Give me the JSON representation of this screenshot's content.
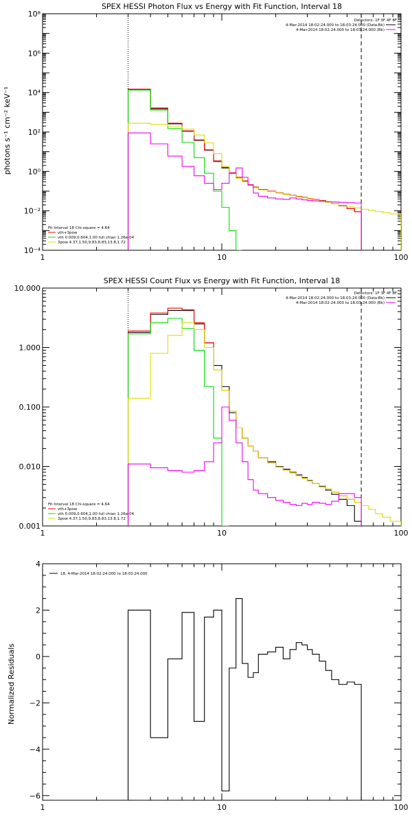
{
  "colors": {
    "data": "#000000",
    "model_total": "#ff0000",
    "vth": "#00dd00",
    "pow": "#dddd00",
    "bk": "#ee00ee",
    "background": "#ffffff"
  },
  "chart_data": [
    {
      "type": "line",
      "title": "SPEX HESSI Photon Flux vs Energy with Fit Function, Interval 18",
      "ylabel": "photons s⁻¹ cm⁻² keV⁻¹",
      "xlabel": "",
      "xscale": "log",
      "yscale": "log",
      "xlim": [
        1,
        100
      ],
      "ylim": [
        0.0001,
        100000000
      ],
      "xticks": [
        {
          "v": 1,
          "label": "1"
        },
        {
          "v": 10,
          "label": "10"
        },
        {
          "v": 100,
          "label": "100"
        }
      ],
      "yticks": [
        {
          "v": 0.0001,
          "label": "10⁻⁴"
        },
        {
          "v": 0.01,
          "label": "10⁻²"
        },
        {
          "v": 1,
          "label": "10⁰"
        },
        {
          "v": 100,
          "label": "10²"
        },
        {
          "v": 10000,
          "label": "10⁴"
        },
        {
          "v": 1000000,
          "label": "10⁶"
        },
        {
          "v": 100000000,
          "label": "10⁸"
        }
      ],
      "vlines": [
        {
          "x": 3.0,
          "style": "dotted"
        },
        {
          "x": 60.0,
          "style": "dashed"
        }
      ],
      "top_legend": {
        "header": "Detectors: 1F 3F 4F 8F",
        "entries": [
          {
            "label": "4-Mar-2014 18:02:24.000 to 18:03:24.000 (Data-Bk)",
            "color": "#000000"
          },
          {
            "label": "4-Mar-2014 18:02:24.000 to 18:03:24.000 (Bk)",
            "color": "#ee00ee"
          }
        ]
      },
      "bottom_legend": {
        "header": "Fit Interval 18   Chi-square = 4.64",
        "entries": [
          {
            "label": "vth+3pow",
            "color": "#ff0000"
          },
          {
            "label": "vth 0.009,0.604,1.00  full chian 1.26e-04",
            "color": "#00dd00"
          },
          {
            "label": "3pow 4.37,1.50,9.83,8.83,13.8,1.72",
            "color": "#dddd00"
          }
        ]
      },
      "edges": [
        3,
        4,
        5,
        6,
        7,
        8,
        9,
        10,
        11,
        12,
        13,
        14,
        15,
        16,
        18,
        20,
        22,
        24,
        26,
        28,
        30,
        32,
        35,
        38,
        41,
        45,
        50,
        55,
        60,
        66,
        72,
        79,
        87,
        100
      ],
      "series": [
        {
          "key": "data",
          "color": "#000000",
          "start": 0,
          "values": [
            14000,
            1500,
            260,
            110,
            38,
            12,
            3.2,
            1.5,
            0.8,
            0.5,
            0.33,
            0.21,
            0.16,
            0.12,
            0.1,
            0.082,
            0.07,
            0.06,
            0.054,
            0.048,
            0.043,
            0.038,
            0.033,
            0.028,
            0.023,
            0.018,
            0.013,
            0.009
          ]
        },
        {
          "key": "model_total",
          "color": "#ff0000",
          "start": 0,
          "values": [
            15000,
            1650,
            280,
            115,
            40,
            12.5,
            3.4,
            1.6,
            0.85,
            0.5,
            0.33,
            0.21,
            0.16,
            0.12,
            0.1,
            0.082,
            0.07,
            0.06,
            0.054,
            0.048,
            0.043,
            0.038,
            0.033,
            0.028,
            0.023,
            0.018,
            0.013,
            0.009
          ]
        },
        {
          "key": "vth",
          "color": "#00dd00",
          "start": 0,
          "values": [
            13500,
            1300,
            150,
            30,
            5,
            0.8,
            0.1,
            0.015,
            0.001,
            0.0001
          ]
        },
        {
          "key": "pow",
          "color": "#dddd00",
          "start": 0,
          "values": [
            280,
            240,
            200,
            140,
            70,
            28,
            8,
            1.8,
            0.8,
            0.45,
            0.3,
            0.2,
            0.15,
            0.115,
            0.095,
            0.08,
            0.068,
            0.059,
            0.052,
            0.046,
            0.041,
            0.036,
            0.031,
            0.027,
            0.023,
            0.019,
            0.016,
            0.014,
            0.012,
            0.0105,
            0.0092,
            0.0082,
            0.007
          ]
        },
        {
          "key": "bk",
          "color": "#ee00ee",
          "start": 0,
          "values": [
            90,
            25,
            6,
            1.8,
            0.6,
            0.25,
            0.12,
            0.25,
            0.8,
            1.5,
            0.5,
            0.2,
            0.08,
            0.055,
            0.045,
            0.04,
            0.038,
            0.045,
            0.04,
            0.036,
            0.034,
            0.032,
            0.03,
            0.029,
            0.028,
            0.027,
            0.026,
            0.025
          ]
        }
      ]
    },
    {
      "type": "line",
      "title": "SPEX HESSI Count Flux vs Energy with Fit Function, Interval 18",
      "ylabel": "",
      "xlabel": "",
      "xscale": "log",
      "yscale": "log",
      "xlim": [
        1,
        100
      ],
      "ylim": [
        0.001,
        10
      ],
      "xticks": [
        {
          "v": 1,
          "label": "1"
        },
        {
          "v": 10,
          "label": "10"
        },
        {
          "v": 100,
          "label": "100"
        }
      ],
      "yticks": [
        {
          "v": 0.001,
          "label": "0.001"
        },
        {
          "v": 0.01,
          "label": "0.010"
        },
        {
          "v": 0.1,
          "label": "0.100"
        },
        {
          "v": 1,
          "label": "1.000"
        },
        {
          "v": 10,
          "label": "10.000"
        }
      ],
      "vlines": [
        {
          "x": 3.0,
          "style": "dotted"
        },
        {
          "x": 60.0,
          "style": "dashed"
        }
      ],
      "top_legend": {
        "header": "Detectors: 1F 3F 4F 8F",
        "entries": [
          {
            "label": "4-Mar-2014 18:02:24.000 to 18:03:24.000 (Data-Bk)",
            "color": "#000000"
          },
          {
            "label": "4-Mar-2014 18:02:24.000 to 18:03:24.000 (Bk)",
            "color": "#ee00ee"
          }
        ]
      },
      "bottom_legend": {
        "header": "Fit Interval 18   Chi-square = 4.64",
        "entries": [
          {
            "label": "vth+3pow",
            "color": "#ff0000"
          },
          {
            "label": "vth 0.009,0.604,1.00  full chian 1.26e-04",
            "color": "#00dd00"
          },
          {
            "label": "3pow 4.37,1.50,9.83,8.83,13.8,1.72",
            "color": "#dddd00"
          }
        ]
      },
      "edges": [
        3,
        4,
        5,
        6,
        7,
        8,
        9,
        10,
        11,
        12,
        13,
        14,
        15,
        16,
        18,
        20,
        22,
        24,
        26,
        28,
        30,
        32,
        35,
        38,
        41,
        45,
        50,
        55,
        60,
        66,
        72,
        79,
        87,
        100
      ],
      "series": [
        {
          "key": "data",
          "color": "#000000",
          "start": 0,
          "values": [
            1.8,
            3.6,
            4.2,
            4.2,
            2.5,
            1.2,
            0.5,
            0.22,
            0.08,
            0.045,
            0.03,
            0.022,
            0.018,
            0.014,
            0.012,
            0.01,
            0.009,
            0.008,
            0.0072,
            0.0065,
            0.0058,
            0.0052,
            0.0046,
            0.004,
            0.0034,
            0.0028,
            0.0022,
            0.0012
          ]
        },
        {
          "key": "model_total",
          "color": "#ff0000",
          "start": 0,
          "values": [
            1.9,
            3.8,
            4.6,
            4.3,
            2.6,
            1.2,
            0.42,
            0.19,
            0.085,
            0.045,
            0.03,
            0.022,
            0.018,
            0.014,
            0.0115,
            0.0098,
            0.0087,
            0.0078,
            0.007,
            0.0063,
            0.0057,
            0.0052,
            0.0047,
            0.0042,
            0.0037,
            0.0032,
            0.0028,
            0.0025
          ]
        },
        {
          "key": "vth",
          "color": "#00dd00",
          "start": 0,
          "values": [
            1.7,
            2.6,
            3.1,
            2.1,
            0.9,
            0.22,
            0.03,
            0.0009
          ]
        },
        {
          "key": "pow",
          "color": "#dddd00",
          "start": 0,
          "values": [
            0.14,
            0.8,
            1.6,
            2.6,
            2.0,
            1.0,
            0.42,
            0.19,
            0.085,
            0.045,
            0.03,
            0.022,
            0.018,
            0.014,
            0.0115,
            0.0098,
            0.0087,
            0.0078,
            0.007,
            0.0063,
            0.0057,
            0.0052,
            0.0047,
            0.0042,
            0.0037,
            0.0032,
            0.0028,
            0.0025,
            0.0022,
            0.0019,
            0.0016,
            0.0014,
            0.0012
          ]
        },
        {
          "key": "bk",
          "color": "#ee00ee",
          "start": 0,
          "values": [
            0.011,
            0.0095,
            0.0085,
            0.008,
            0.0085,
            0.012,
            0.025,
            0.1,
            0.06,
            0.025,
            0.012,
            0.006,
            0.004,
            0.0035,
            0.003,
            0.0027,
            0.0025,
            0.0023,
            0.0022,
            0.0024,
            0.0023,
            0.0025,
            0.0024,
            0.0023,
            0.0026,
            0.0035,
            0.0035,
            0.003
          ]
        }
      ]
    },
    {
      "type": "line",
      "title": "",
      "ylabel": "Normalized Residuals",
      "xlabel": "",
      "xscale": "log",
      "yscale": "linear",
      "xlim": [
        1,
        100
      ],
      "ylim": [
        -6.2,
        4
      ],
      "xticks": [
        {
          "v": 1,
          "label": "1"
        },
        {
          "v": 10,
          "label": "10"
        },
        {
          "v": 100,
          "label": "100"
        }
      ],
      "yticks": [
        {
          "v": -6,
          "label": "−6"
        },
        {
          "v": -4,
          "label": "−4"
        },
        {
          "v": -2,
          "label": "−2"
        },
        {
          "v": 0,
          "label": "0"
        },
        {
          "v": 2,
          "label": "2"
        },
        {
          "v": 4,
          "label": "4"
        }
      ],
      "vlines": [],
      "top_legend": {
        "header": "",
        "entries": [
          {
            "label": "18,  4-Mar-2014 18:02:24.000 to 18:03:24.000",
            "color": "#000000"
          }
        ]
      },
      "bottom_legend": {
        "header": "",
        "entries": []
      },
      "edges": [
        3,
        4,
        5,
        6,
        7,
        8,
        9,
        10,
        11,
        12,
        13,
        14,
        15,
        16,
        18,
        20,
        22,
        24,
        26,
        28,
        30,
        32,
        35,
        38,
        41,
        45,
        50,
        55,
        60
      ],
      "series": [
        {
          "key": "data",
          "color": "#000000",
          "start": 0,
          "drop_to_floor": true,
          "values": [
            2.0,
            -3.5,
            -0.1,
            1.9,
            -2.8,
            1.7,
            2.0,
            -5.8,
            -0.5,
            2.5,
            -0.3,
            -0.9,
            -0.7,
            0.1,
            0.2,
            0.4,
            -0.1,
            0.3,
            0.6,
            0.5,
            0.3,
            0.1,
            -0.2,
            -0.6,
            -1.0,
            -1.2,
            -1.1,
            -1.2
          ]
        }
      ]
    }
  ]
}
